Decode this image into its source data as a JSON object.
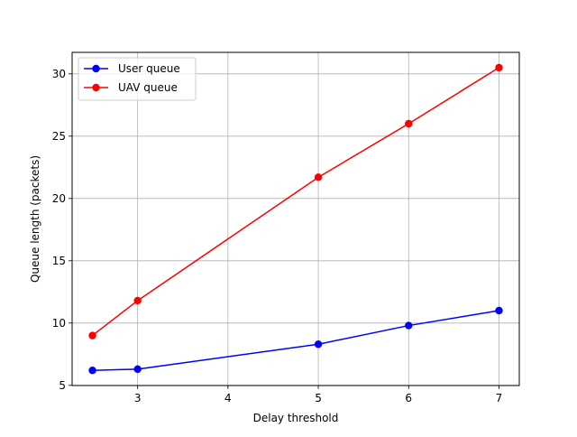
{
  "chart_data": {
    "type": "line",
    "title": "",
    "xlabel": "Delay threshold",
    "ylabel": "Queue length (packets)",
    "x": [
      2.5,
      3,
      5,
      6,
      7
    ],
    "xlim": [
      2.275,
      7.225
    ],
    "ylim": [
      4.985,
      31.725
    ],
    "xticks": [
      3,
      4,
      5,
      6,
      7
    ],
    "yticks": [
      5,
      10,
      15,
      20,
      25,
      30
    ],
    "grid": true,
    "legend_position": "upper-left",
    "series": [
      {
        "name": "User queue",
        "color": "#0000ff",
        "marker": "circle",
        "values": [
          6.2,
          6.3,
          8.3,
          9.8,
          11.0
        ]
      },
      {
        "name": "UAV queue",
        "color": "#ff0000",
        "marker": "circle",
        "values": [
          9.0,
          11.8,
          21.7,
          26.0,
          30.5
        ]
      }
    ]
  }
}
